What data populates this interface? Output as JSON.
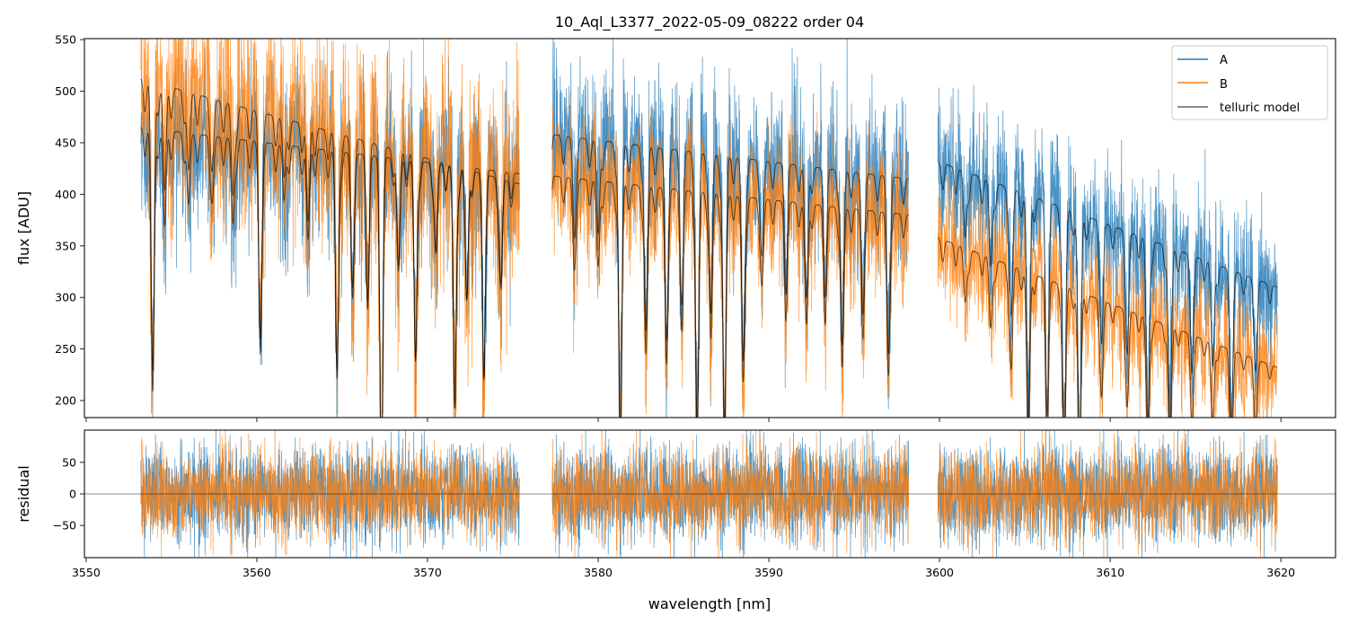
{
  "chart_data": [
    {
      "type": "line",
      "panel": "top",
      "title": "10_Aql_L3377_2022-05-09_08222  order 04",
      "xlabel": "",
      "ylabel": "flux [ADU]",
      "xlim": [
        3549.9,
        3623.2
      ],
      "ylim": [
        183.5,
        551
      ],
      "yticks": [
        200,
        250,
        300,
        350,
        400,
        450,
        500,
        550
      ],
      "xticks": [
        3550,
        3560,
        3570,
        3580,
        3590,
        3600,
        3610,
        3620
      ],
      "legend": {
        "placement": "top-right",
        "entries": [
          "A",
          "B",
          "telluric model"
        ]
      },
      "colors": {
        "A": "#1f77b4",
        "B": "#ff7f0e",
        "telluric model": "#000000"
      },
      "segments": [
        {
          "x": [
            3553.2,
            3575.4
          ],
          "continuum_A": [
            465,
            420
          ],
          "continuum_B": [
            512,
            410
          ],
          "noise_A": 38,
          "noise_B": 50
        },
        {
          "x": [
            3577.3,
            3598.2
          ],
          "continuum_A": [
            458,
            415
          ],
          "continuum_B": [
            418,
            380
          ],
          "noise_A": 38,
          "noise_B": 33
        },
        {
          "x": [
            3599.9,
            3619.8
          ],
          "continuum_A": [
            432,
            310
          ],
          "continuum_B": [
            358,
            232
          ],
          "noise_A": 35,
          "noise_B": 30
        }
      ],
      "telluric_lines": [
        {
          "x": 3553.9,
          "depth": 0.55
        },
        {
          "x": 3554.6,
          "depth": 0.2
        },
        {
          "x": 3556.0,
          "depth": 0.15
        },
        {
          "x": 3557.4,
          "depth": 0.12
        },
        {
          "x": 3558.6,
          "depth": 0.18
        },
        {
          "x": 3560.2,
          "depth": 0.45
        },
        {
          "x": 3561.6,
          "depth": 0.12
        },
        {
          "x": 3563.0,
          "depth": 0.2
        },
        {
          "x": 3564.7,
          "depth": 0.5
        },
        {
          "x": 3565.6,
          "depth": 0.3
        },
        {
          "x": 3566.5,
          "depth": 0.3
        },
        {
          "x": 3567.3,
          "depth": 0.7
        },
        {
          "x": 3568.3,
          "depth": 0.25
        },
        {
          "x": 3569.3,
          "depth": 0.45
        },
        {
          "x": 3570.5,
          "depth": 0.2
        },
        {
          "x": 3571.6,
          "depth": 0.55
        },
        {
          "x": 3572.3,
          "depth": 0.3
        },
        {
          "x": 3573.3,
          "depth": 0.45
        },
        {
          "x": 3574.3,
          "depth": 0.25
        },
        {
          "x": 3578.6,
          "depth": 0.2
        },
        {
          "x": 3580.0,
          "depth": 0.2
        },
        {
          "x": 3581.3,
          "depth": 0.65
        },
        {
          "x": 3582.8,
          "depth": 0.4
        },
        {
          "x": 3584.0,
          "depth": 0.4
        },
        {
          "x": 3584.9,
          "depth": 0.3
        },
        {
          "x": 3585.8,
          "depth": 0.6
        },
        {
          "x": 3586.6,
          "depth": 0.35
        },
        {
          "x": 3587.4,
          "depth": 0.6
        },
        {
          "x": 3588.5,
          "depth": 0.45
        },
        {
          "x": 3589.6,
          "depth": 0.2
        },
        {
          "x": 3591.0,
          "depth": 0.25
        },
        {
          "x": 3592.2,
          "depth": 0.3
        },
        {
          "x": 3593.3,
          "depth": 0.25
        },
        {
          "x": 3594.3,
          "depth": 0.4
        },
        {
          "x": 3595.5,
          "depth": 0.3
        },
        {
          "x": 3597.0,
          "depth": 0.4
        },
        {
          "x": 3601.5,
          "depth": 0.15
        },
        {
          "x": 3603.0,
          "depth": 0.2
        },
        {
          "x": 3604.2,
          "depth": 0.3
        },
        {
          "x": 3605.2,
          "depth": 0.55
        },
        {
          "x": 3606.3,
          "depth": 0.5
        },
        {
          "x": 3607.3,
          "depth": 0.6
        },
        {
          "x": 3608.2,
          "depth": 0.6
        },
        {
          "x": 3609.5,
          "depth": 0.3
        },
        {
          "x": 3611.0,
          "depth": 0.3
        },
        {
          "x": 3612.2,
          "depth": 0.5
        },
        {
          "x": 3613.5,
          "depth": 0.5
        },
        {
          "x": 3614.8,
          "depth": 0.3
        },
        {
          "x": 3616.0,
          "depth": 0.3
        },
        {
          "x": 3617.1,
          "depth": 0.45
        },
        {
          "x": 3618.5,
          "depth": 0.25
        }
      ]
    },
    {
      "type": "line",
      "panel": "bottom",
      "xlabel": "wavelength [nm]",
      "ylabel": "residual",
      "xlim": [
        3549.9,
        3623.2
      ],
      "ylim": [
        -101,
        101
      ],
      "yticks": [
        -50,
        0,
        50
      ],
      "ytick_labels": [
        "−50",
        "0",
        "50"
      ],
      "xticks": [
        3550,
        3560,
        3570,
        3580,
        3590,
        3600,
        3610,
        3620
      ],
      "reference_line": 0,
      "noise_A": 38,
      "noise_B": 35
    }
  ]
}
